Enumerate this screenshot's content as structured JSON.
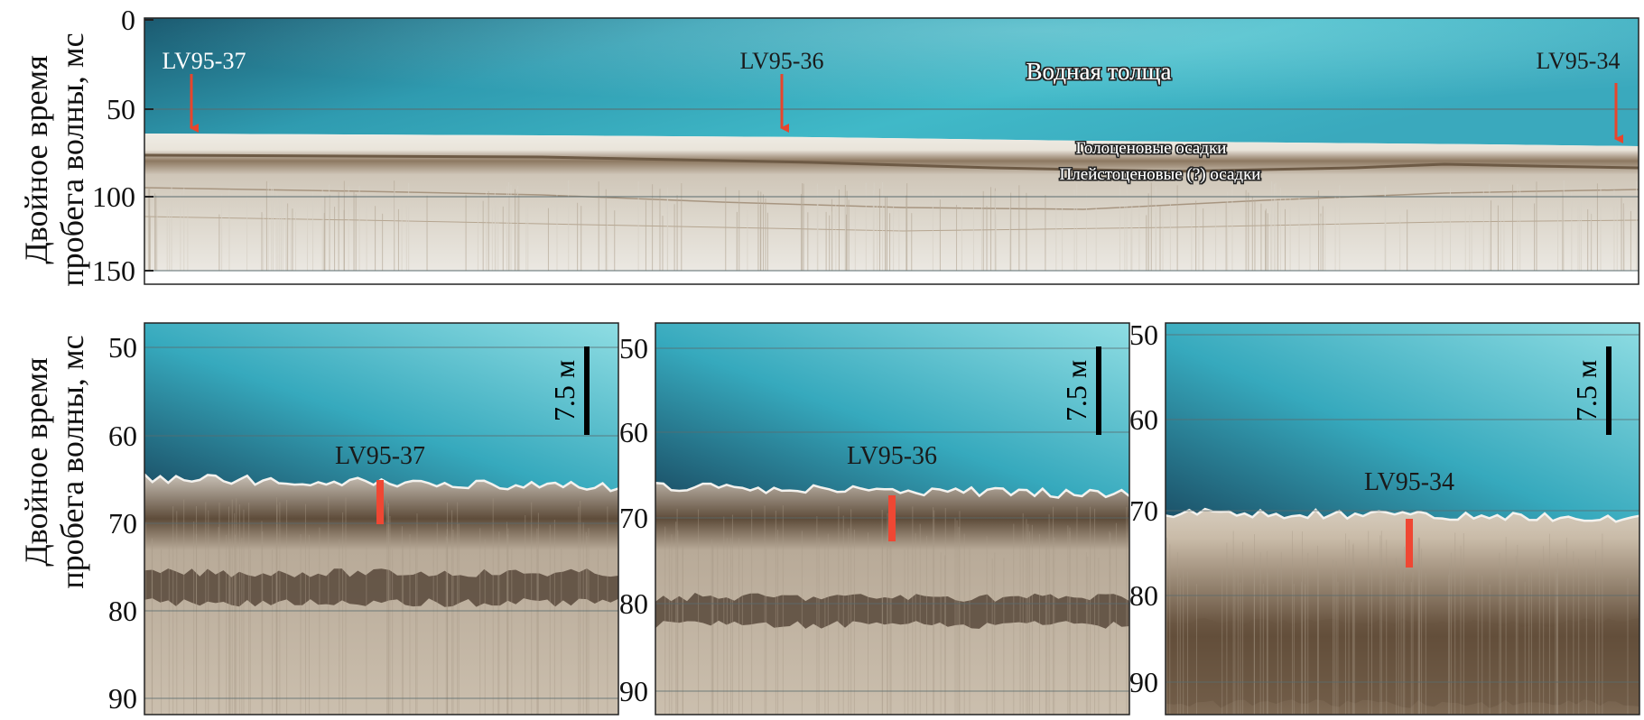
{
  "axis_title_lines": [
    "Двойное время",
    "пробега волны, мс"
  ],
  "top_panel": {
    "y_ticks": [
      "0",
      "50",
      "100",
      "150"
    ],
    "labels": {
      "water": "Водная толща",
      "holocene": "Голоценовые осадки",
      "pleistocene": "Плейстоценовые (?) осадки"
    },
    "cores": [
      "LV95-37",
      "LV95-36",
      "LV95-34"
    ]
  },
  "bottom_panels": [
    {
      "core": "LV95-37",
      "y_ticks": [
        "50",
        "60",
        "70",
        "80",
        "90"
      ],
      "scale_label": "7.5 м"
    },
    {
      "core": "LV95-36",
      "y_ticks": [
        "50",
        "60",
        "70",
        "80",
        "90"
      ],
      "scale_label": "7.5 м"
    },
    {
      "core": "LV95-34",
      "y_ticks": [
        "50",
        "60",
        "70",
        "80",
        "90"
      ],
      "scale_label": "7.5 м"
    }
  ],
  "colors": {
    "arrow": "#e8452c",
    "core_marker": "#ef4733",
    "water_dark": "#1c5f74",
    "water_light": "#43c2cf",
    "sediment_light": "#eeebe4",
    "sediment_dark": "#6d5a45"
  }
}
